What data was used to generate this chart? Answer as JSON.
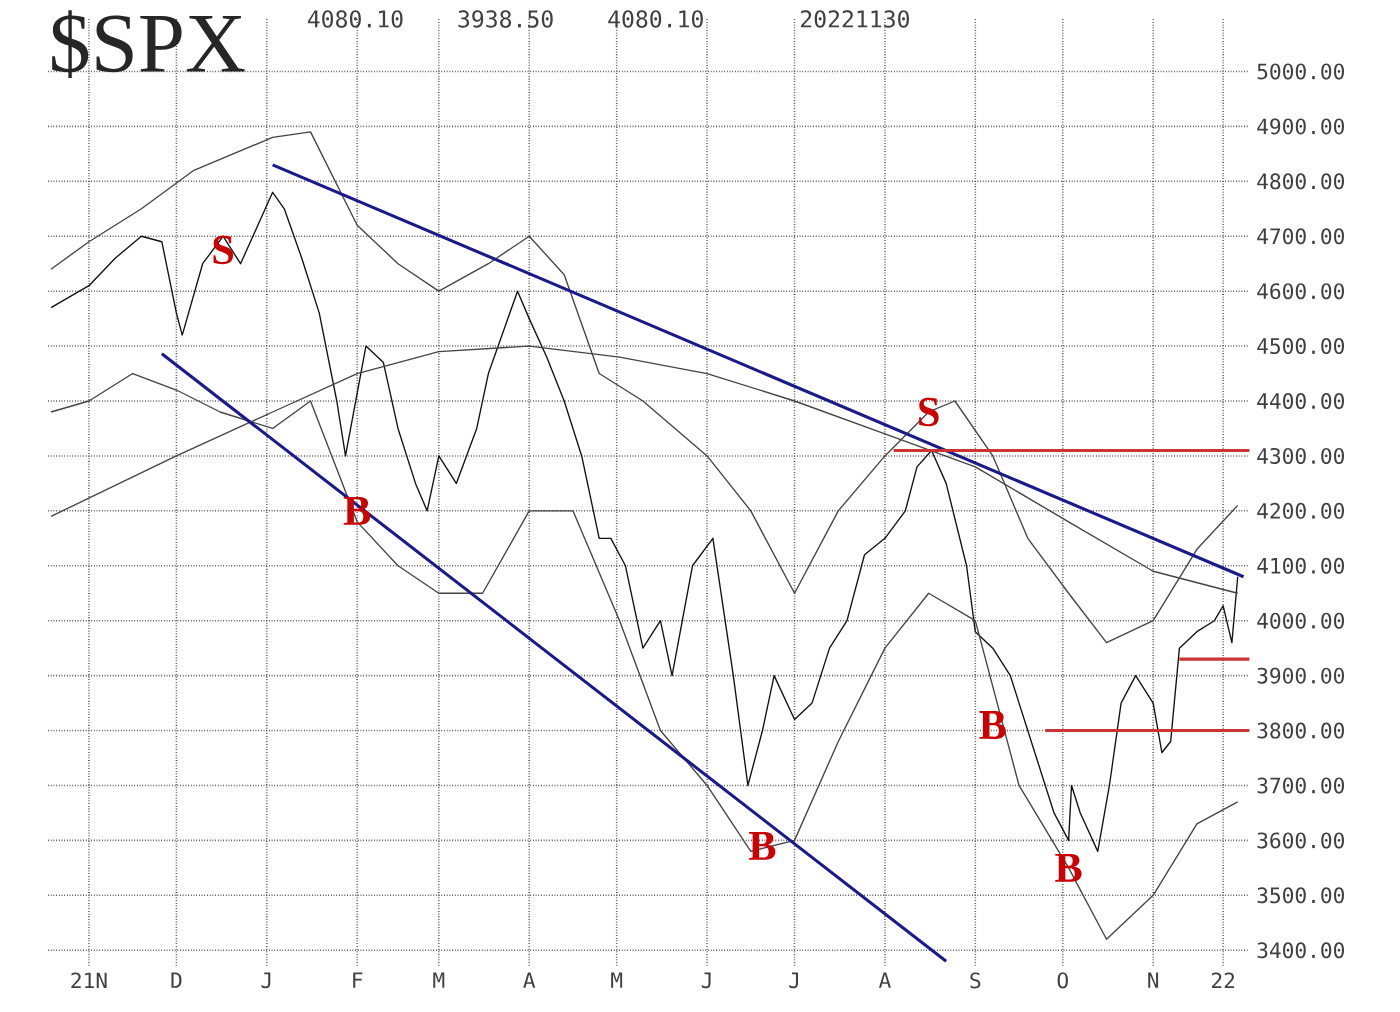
{
  "chart_data": {
    "type": "line",
    "title": "$SPX",
    "annotations": [
      "4080.10",
      "3938.50",
      "4080.10",
      "20221130",
      {
        "text": "S",
        "x": "2021-12-17",
        "y": 4675
      },
      {
        "text": "B",
        "x": "2022-02-01",
        "y": 4200
      },
      {
        "text": "S",
        "x": "2022-08-16",
        "y": 4380
      },
      {
        "text": "B",
        "x": "2022-09-07",
        "y": 3810
      },
      {
        "text": "B",
        "x": "2022-06-20",
        "y": 3590
      },
      {
        "text": "B",
        "x": "2022-10-03",
        "y": 3550
      }
    ],
    "xlim": [
      "2021-10-18",
      "2022-12-04"
    ],
    "ylim": [
      3372,
      5095
    ],
    "xticks": [
      {
        "value": "2021-11-01",
        "label": "21N"
      },
      {
        "value": "2021-12-01",
        "label": "D"
      },
      {
        "value": "2022-01-01",
        "label": "J"
      },
      {
        "value": "2022-02-01",
        "label": "F"
      },
      {
        "value": "2022-03-01",
        "label": "M"
      },
      {
        "value": "2022-04-01",
        "label": "A"
      },
      {
        "value": "2022-05-01",
        "label": "M"
      },
      {
        "value": "2022-06-01",
        "label": "J"
      },
      {
        "value": "2022-07-01",
        "label": "J"
      },
      {
        "value": "2022-08-01",
        "label": "A"
      },
      {
        "value": "2022-09-01",
        "label": "S"
      },
      {
        "value": "2022-10-01",
        "label": "O"
      },
      {
        "value": "2022-11-01",
        "label": "N"
      },
      {
        "value": "2022-11-25",
        "label": "22"
      }
    ],
    "yticks": [
      {
        "value": 3400,
        "label": "3400.00"
      },
      {
        "value": 3500,
        "label": "3500.00"
      },
      {
        "value": 3600,
        "label": "3600.00"
      },
      {
        "value": 3700,
        "label": "3700.00"
      },
      {
        "value": 3800,
        "label": "3800.00"
      },
      {
        "value": 3900,
        "label": "3900.00"
      },
      {
        "value": 4000,
        "label": "4000.00"
      },
      {
        "value": 4100,
        "label": "4100.00"
      },
      {
        "value": 4200,
        "label": "4200.00"
      },
      {
        "value": 4300,
        "label": "4300.00"
      },
      {
        "value": 4400,
        "label": "4400.00"
      },
      {
        "value": 4500,
        "label": "4500.00"
      },
      {
        "value": 4600,
        "label": "4600.00"
      },
      {
        "value": 4700,
        "label": "4700.00"
      },
      {
        "value": 4800,
        "label": "4800.00"
      },
      {
        "value": 4900,
        "label": "4900.00"
      },
      {
        "value": 5000,
        "label": "5000.00"
      }
    ],
    "grid": true,
    "marker": "none",
    "series": [
      {
        "color": "#111111",
        "x": [
          "2021-10-19",
          "2021-11-01",
          "2021-11-10",
          "2021-11-19",
          "2021-11-26",
          "2021-12-01",
          "2021-12-03",
          "2021-12-10",
          "2021-12-17",
          "2021-12-23",
          "2022-01-03",
          "2022-01-07",
          "2022-01-13",
          "2022-01-19",
          "2022-01-25",
          "2022-01-28",
          "2022-02-04",
          "2022-02-10",
          "2022-02-15",
          "2022-02-21",
          "2022-02-25",
          "2022-03-01",
          "2022-03-07",
          "2022-03-14",
          "2022-03-18",
          "2022-03-28",
          "2022-04-01",
          "2022-04-07",
          "2022-04-13",
          "2022-04-19",
          "2022-04-25",
          "2022-04-29",
          "2022-05-04",
          "2022-05-10",
          "2022-05-16",
          "2022-05-20",
          "2022-05-27",
          "2022-06-03",
          "2022-06-10",
          "2022-06-15",
          "2022-06-20",
          "2022-06-24",
          "2022-07-01",
          "2022-07-07",
          "2022-07-13",
          "2022-07-19",
          "2022-07-25",
          "2022-08-01",
          "2022-08-08",
          "2022-08-12",
          "2022-08-17",
          "2022-08-22",
          "2022-08-29",
          "2022-09-01",
          "2022-09-07",
          "2022-09-13",
          "2022-09-16",
          "2022-09-22",
          "2022-09-28",
          "2022-10-03",
          "2022-10-04",
          "2022-10-07",
          "2022-10-13",
          "2022-10-17",
          "2022-10-21",
          "2022-10-26",
          "2022-11-01",
          "2022-11-04",
          "2022-11-07",
          "2022-11-10",
          "2022-11-16",
          "2022-11-22",
          "2022-11-25",
          "2022-11-28",
          "2022-11-30"
        ],
        "values": [
          4570,
          4610,
          4660,
          4700,
          4690,
          4560,
          4520,
          4650,
          4700,
          4650,
          4780,
          4750,
          4660,
          4560,
          4400,
          4300,
          4500,
          4470,
          4350,
          4250,
          4200,
          4300,
          4250,
          4350,
          4450,
          4600,
          4550,
          4480,
          4400,
          4300,
          4150,
          4150,
          4100,
          3950,
          4000,
          3900,
          4100,
          4150,
          3900,
          3700,
          3800,
          3900,
          3820,
          3850,
          3950,
          4000,
          4120,
          4150,
          4200,
          4280,
          4310,
          4250,
          4100,
          3980,
          3950,
          3900,
          3850,
          3750,
          3650,
          3600,
          3700,
          3650,
          3580,
          3700,
          3850,
          3900,
          3850,
          3760,
          3780,
          3950,
          3980,
          4000,
          4027,
          3960,
          4080
        ]
      },
      {
        "color": "#444444",
        "x": [
          "2021-10-19",
          "2021-11-01",
          "2021-11-19",
          "2021-12-07",
          "2022-01-03",
          "2022-01-16",
          "2022-02-01",
          "2022-02-15",
          "2022-03-01",
          "2022-03-18",
          "2022-04-01",
          "2022-04-13",
          "2022-04-25",
          "2022-05-10",
          "2022-06-01",
          "2022-06-16",
          "2022-07-01",
          "2022-07-16",
          "2022-08-01",
          "2022-08-16",
          "2022-08-25",
          "2022-09-07",
          "2022-09-19",
          "2022-10-03",
          "2022-10-16",
          "2022-11-01",
          "2022-11-16",
          "2022-11-30"
        ],
        "values": [
          4640,
          4690,
          4750,
          4820,
          4880,
          4890,
          4720,
          4650,
          4600,
          4650,
          4700,
          4630,
          4450,
          4400,
          4300,
          4200,
          4050,
          4200,
          4300,
          4380,
          4400,
          4300,
          4150,
          4050,
          3960,
          4000,
          4130,
          4210
        ]
      },
      {
        "color": "#444444",
        "x": [
          "2021-10-19",
          "2021-11-01",
          "2021-11-16",
          "2021-12-01",
          "2021-12-16",
          "2022-01-03",
          "2022-01-16",
          "2022-02-01",
          "2022-02-15",
          "2022-03-01",
          "2022-03-16",
          "2022-04-01",
          "2022-04-16",
          "2022-05-02",
          "2022-05-16",
          "2022-06-01",
          "2022-06-16",
          "2022-07-01",
          "2022-07-16",
          "2022-08-01",
          "2022-08-16",
          "2022-09-01",
          "2022-09-16",
          "2022-10-03",
          "2022-10-16",
          "2022-11-01",
          "2022-11-16",
          "2022-11-30"
        ],
        "values": [
          4380,
          4400,
          4450,
          4420,
          4380,
          4350,
          4400,
          4180,
          4100,
          4050,
          4050,
          4200,
          4200,
          4000,
          3800,
          3700,
          3580,
          3600,
          3780,
          3950,
          4050,
          4000,
          3700,
          3550,
          3420,
          3500,
          3630,
          3670
        ]
      },
      {
        "color": "#444444",
        "x": [
          "2021-10-19",
          "2021-12-01",
          "2022-01-03",
          "2022-02-01",
          "2022-03-01",
          "2022-04-01",
          "2022-05-02",
          "2022-06-01",
          "2022-07-01",
          "2022-08-01",
          "2022-09-01",
          "2022-10-03",
          "2022-11-01",
          "2022-11-30"
        ],
        "values": [
          4190,
          4300,
          4380,
          4450,
          4490,
          4500,
          4480,
          4450,
          4400,
          4340,
          4280,
          4180,
          4090,
          4050
        ]
      },
      {
        "color": "#1a1a8c",
        "x": [
          "2022-01-03",
          "2022-12-02"
        ],
        "values": [
          4830,
          4080
        ]
      },
      {
        "color": "#1a1a8c",
        "x": [
          "2021-11-26",
          "2022-08-22"
        ],
        "values": [
          4486,
          3380
        ]
      },
      {
        "color": "#cc3333",
        "x": [
          "2022-08-04",
          "2022-12-04"
        ],
        "values": [
          4310,
          4310
        ]
      },
      {
        "color": "#cc3333",
        "x": [
          "2022-11-10",
          "2022-12-04"
        ],
        "values": [
          3930,
          3930
        ]
      },
      {
        "color": "#cc3333",
        "x": [
          "2022-09-25",
          "2022-12-04"
        ],
        "values": [
          3800,
          3800
        ]
      }
    ]
  }
}
